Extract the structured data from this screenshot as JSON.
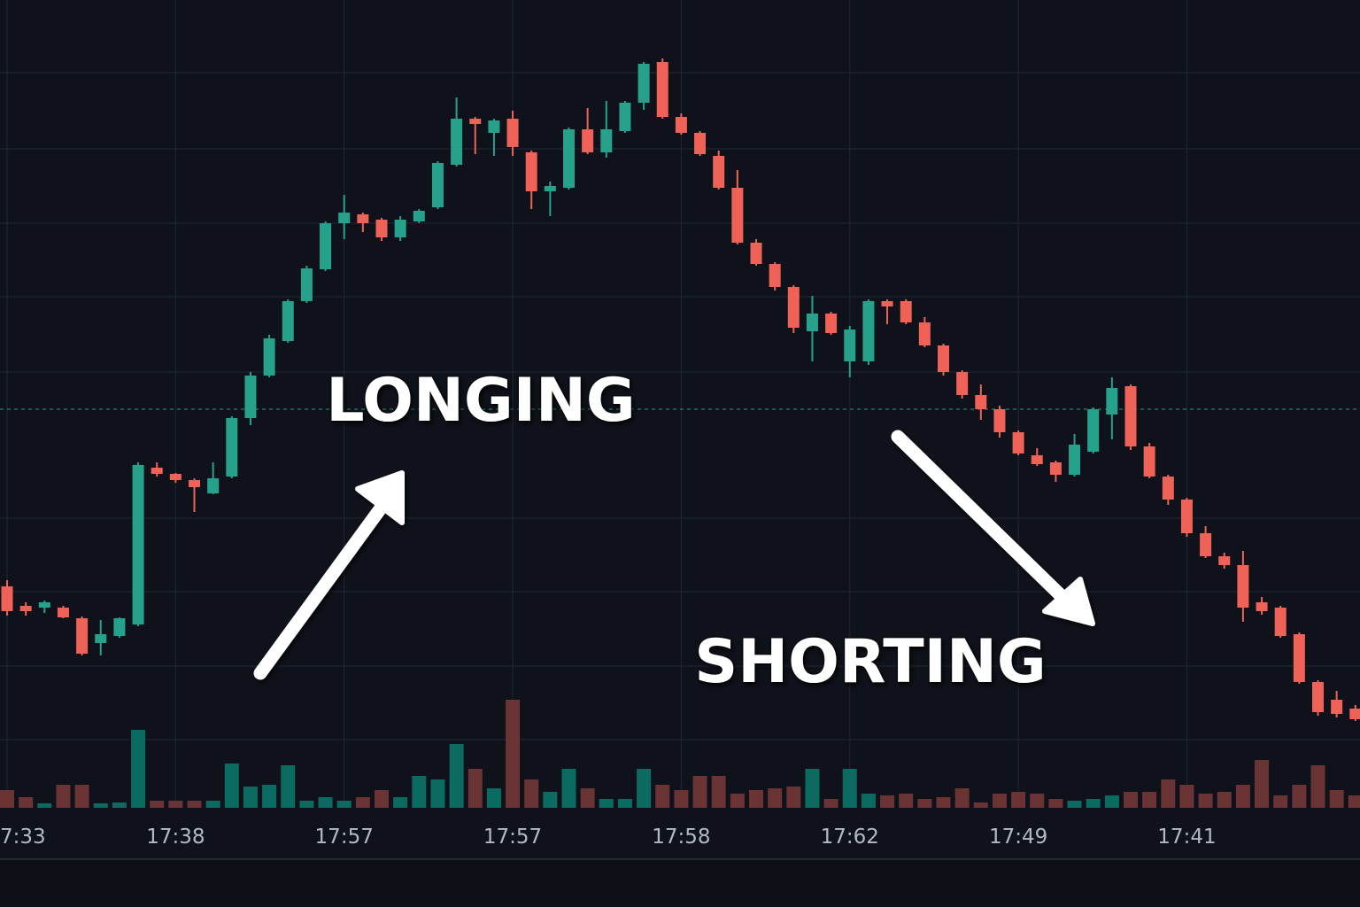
{
  "chart_data": {
    "type": "candlestick",
    "categories": [
      "7:33",
      null,
      null,
      null,
      null,
      null,
      null,
      null,
      null,
      "17:38",
      null,
      null,
      null,
      null,
      null,
      null,
      null,
      null,
      "17:57",
      null,
      null,
      null,
      null,
      null,
      null,
      null,
      null,
      "17:57",
      null,
      null,
      null,
      null,
      null,
      null,
      null,
      null,
      "17:58",
      null,
      null,
      null,
      null,
      null,
      null,
      null,
      null,
      "17:62",
      null,
      null,
      null,
      null,
      null,
      null,
      null,
      null,
      "17:49",
      null,
      null,
      null,
      null,
      null,
      null,
      null,
      null,
      "17:41",
      null,
      null,
      null,
      null,
      null,
      null,
      null,
      null,
      null
    ],
    "open": [
      33.8,
      31.6,
      31.4,
      31.4,
      30.2,
      27.4,
      28.2,
      29.5,
      47.2,
      46.5,
      45.8,
      44.3,
      46.2,
      52.8,
      57.6,
      61.5,
      66,
      69.6,
      74.8,
      75.8,
      75.2,
      73.2,
      75,
      76.6,
      81.4,
      86.6,
      85,
      86.6,
      82.8,
      78.4,
      78.8,
      85.4,
      82.8,
      85.2,
      88.4,
      93,
      86.8,
      85,
      82.4,
      78.8,
      72.6,
      70.2,
      67.6,
      62.6,
      64.6,
      59.2,
      59.2,
      66,
      66,
      63.6,
      61,
      58,
      55.4,
      53.8,
      51.2,
      48.6,
      47.8,
      46.4,
      49,
      53.2,
      56.4,
      49.6,
      46.2,
      43.6,
      39.8,
      37.2,
      36.2,
      32,
      31.4,
      28.4,
      23,
      21,
      20
    ],
    "high": [
      34.5,
      32,
      32.2,
      31.6,
      30.4,
      30,
      30.3,
      47.8,
      47.8,
      46.6,
      46,
      47.8,
      53,
      58,
      62.2,
      66.2,
      70,
      75,
      78,
      76,
      75.4,
      75.6,
      76.4,
      81.8,
      89,
      86.8,
      86.6,
      87.5,
      83,
      79.5,
      85.6,
      87.8,
      88.6,
      88.6,
      93,
      93.4,
      87.2,
      85.2,
      83,
      80.8,
      73,
      70.4,
      67.8,
      66.6,
      64.8,
      63.2,
      66.2,
      66.2,
      66.2,
      64.2,
      61.2,
      58.2,
      56.6,
      54.2,
      51.4,
      49.4,
      48,
      51,
      54,
      57.4,
      56.6,
      50,
      46.4,
      43.8,
      40.6,
      37.6,
      37.8,
      32.6,
      31.6,
      28.6,
      23.2,
      22,
      20.4
    ],
    "low": [
      30.5,
      30.5,
      30.8,
      30.2,
      26,
      26,
      28,
      29.3,
      46.2,
      45.5,
      42.2,
      44.2,
      46,
      52,
      57.4,
      61.3,
      65.8,
      69.4,
      73,
      73.8,
      72.8,
      72.8,
      74.8,
      76.4,
      81.2,
      82.6,
      82.4,
      82.4,
      76.4,
      75.6,
      78.6,
      82.6,
      82.2,
      85,
      87.6,
      86.6,
      84.8,
      82.4,
      78.6,
      72.4,
      70,
      67.2,
      62.4,
      59.2,
      62.2,
      57.4,
      58.8,
      63.4,
      63.4,
      60.8,
      57.6,
      55,
      52.6,
      50.6,
      48.6,
      47.4,
      45.6,
      46.2,
      48.8,
      50.4,
      49.2,
      46,
      43,
      39.4,
      37,
      35.8,
      29.8,
      30.6,
      28,
      22.8,
      19.2,
      19,
      18.6
    ],
    "close": [
      31,
      31,
      32,
      30.3,
      26.2,
      28.4,
      30.2,
      47.5,
      46.5,
      45.8,
      45,
      46,
      52.8,
      57.6,
      61.8,
      66,
      69.7,
      74.8,
      76,
      74.8,
      73.2,
      75.2,
      76.2,
      81.6,
      86.6,
      86,
      86.4,
      83.4,
      78.4,
      79,
      85.4,
      82.8,
      85.4,
      88.4,
      92.8,
      86.8,
      85,
      82.6,
      78.8,
      72.6,
      70.2,
      67.6,
      63,
      64.6,
      62.4,
      62.8,
      66,
      65.4,
      63.6,
      61,
      58,
      55.4,
      53.8,
      51.2,
      48.8,
      47.6,
      46.4,
      49.8,
      53.8,
      56.2,
      49.6,
      46.2,
      43.6,
      39.8,
      37.2,
      36.2,
      31.4,
      31,
      28.2,
      23,
      19.6,
      19.4,
      18.8
    ],
    "volume": [
      20,
      12,
      5,
      26,
      26,
      5,
      6,
      88,
      8,
      8,
      8,
      8,
      50,
      24,
      26,
      48,
      8,
      12,
      8,
      12,
      20,
      12,
      36,
      32,
      72,
      44,
      22,
      122,
      32,
      18,
      44,
      22,
      10,
      10,
      44,
      26,
      20,
      36,
      36,
      16,
      20,
      22,
      24,
      44,
      10,
      44,
      16,
      14,
      16,
      10,
      12,
      22,
      6,
      16,
      18,
      16,
      10,
      8,
      10,
      14,
      18,
      18,
      32,
      26,
      16,
      18,
      26,
      54,
      14,
      26,
      48,
      20,
      14
    ],
    "ylim": [
      0,
      100
    ],
    "y2lim": [
      0,
      1000
    ],
    "reference_line": 53.8,
    "up_color": "#26a28c",
    "down_color": "#ef6257",
    "volume_up_color": "#0c6b60",
    "volume_down_color": "#6a3434",
    "grid": true,
    "annotations": [
      {
        "text": "LONGING"
      },
      {
        "text": "SHORTING"
      }
    ]
  }
}
